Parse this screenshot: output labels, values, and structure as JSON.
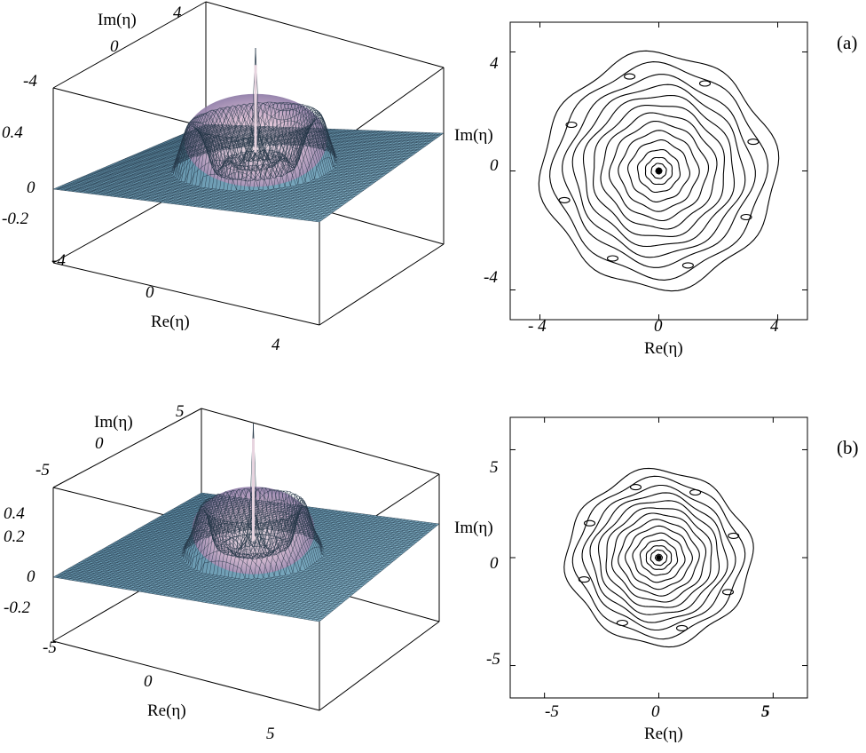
{
  "chart_data": [
    {
      "type": "surface",
      "panel": "(a)",
      "xlabel": "Re(η)",
      "ylabel": "Im(η)",
      "x_ticks": [
        "-4",
        "0",
        "4"
      ],
      "y_ticks": [
        "-4",
        "0",
        "4"
      ],
      "z_ticks": [
        "0.4",
        "0",
        "-0.2"
      ],
      "xlim": [
        -5,
        5
      ],
      "ylim": [
        -5,
        5
      ],
      "zlim": [
        -0.3,
        0.6
      ],
      "colors": {
        "surface_top": "#5d8fa8",
        "ring": "#c9a9c9",
        "peak": "#e6d2e0"
      }
    },
    {
      "type": "contour",
      "panel": "(a)",
      "xlabel": "Re(η)",
      "ylabel": "Im(η)",
      "x_ticks": [
        "- 4",
        "0",
        "4"
      ],
      "y_ticks": [
        "4",
        "0",
        "-4"
      ],
      "xlim": [
        -5,
        5
      ],
      "ylim": [
        -5,
        5
      ],
      "levels_radii": [
        3.9,
        3.5,
        3.1,
        2.8,
        2.5,
        2.2,
        1.9,
        1.6,
        1.3,
        1.0,
        0.7,
        0.45,
        0.25,
        0.1
      ]
    },
    {
      "type": "surface",
      "panel": "(b)",
      "xlabel": "Re(η)",
      "ylabel": "Im(η)",
      "x_ticks": [
        "-5",
        "0",
        "5"
      ],
      "y_ticks": [
        "-5",
        "0",
        "5"
      ],
      "z_ticks": [
        "0.4",
        "0.2",
        "0",
        "-0.2"
      ],
      "xlim": [
        -6,
        6
      ],
      "ylim": [
        -6,
        6
      ],
      "zlim": [
        -0.3,
        0.5
      ],
      "colors": {
        "surface_top": "#5d8fa8",
        "ring": "#c9a9c9",
        "peak": "#e6d2e0"
      }
    },
    {
      "type": "contour",
      "panel": "(b)",
      "xlabel": "Re(η)",
      "ylabel": "Im(η)",
      "x_ticks": [
        "-5",
        "0",
        "5"
      ],
      "y_ticks": [
        "5",
        "0",
        "-5"
      ],
      "xlim": [
        -6.5,
        6.5
      ],
      "ylim": [
        -6.5,
        6.5
      ],
      "levels_radii": [
        4.0,
        3.6,
        3.2,
        2.9,
        2.6,
        2.3,
        2.0,
        1.7,
        1.4,
        1.1,
        0.8,
        0.55,
        0.35,
        0.15
      ]
    }
  ],
  "labels": {
    "a": "(a)",
    "b": "(b)"
  }
}
